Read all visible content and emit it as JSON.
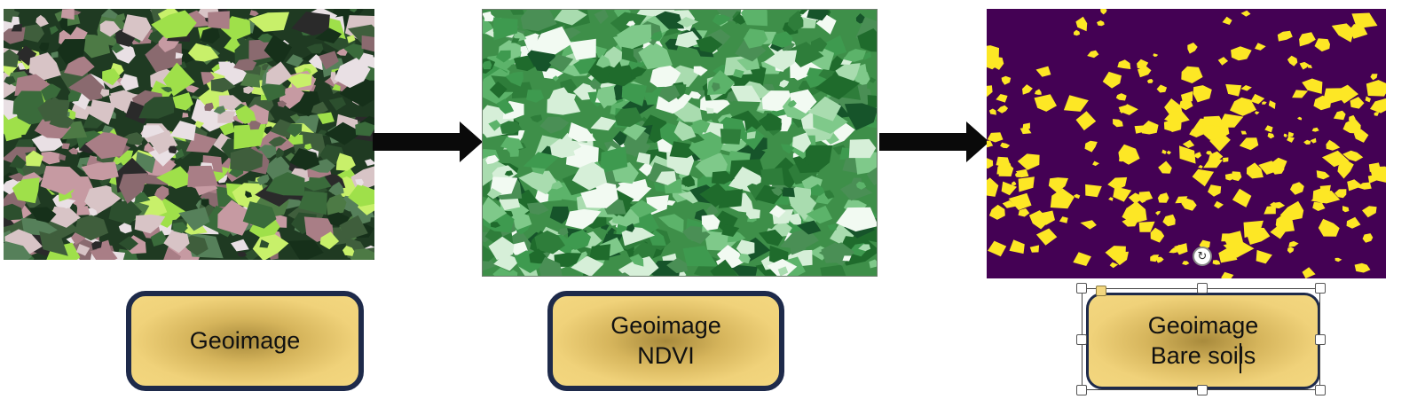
{
  "labels": {
    "rgb": {
      "line1": "Geoimage"
    },
    "ndvi": {
      "line1": "Geoimage",
      "line2": "NDVI"
    },
    "bare": {
      "line1": "Geoimage",
      "line2": "Bare soils"
    }
  },
  "colors": {
    "label_fill": "#f0d27a",
    "label_border": "#1e2a4a",
    "arrow": "#0a0a0a",
    "bare_background": "#440154",
    "bare_foreground": "#fde725",
    "ndvi_green": "#3e9a4f",
    "rgb_dark_green": "#1f3a22"
  },
  "icons": {
    "rotate": "rotate-icon"
  }
}
